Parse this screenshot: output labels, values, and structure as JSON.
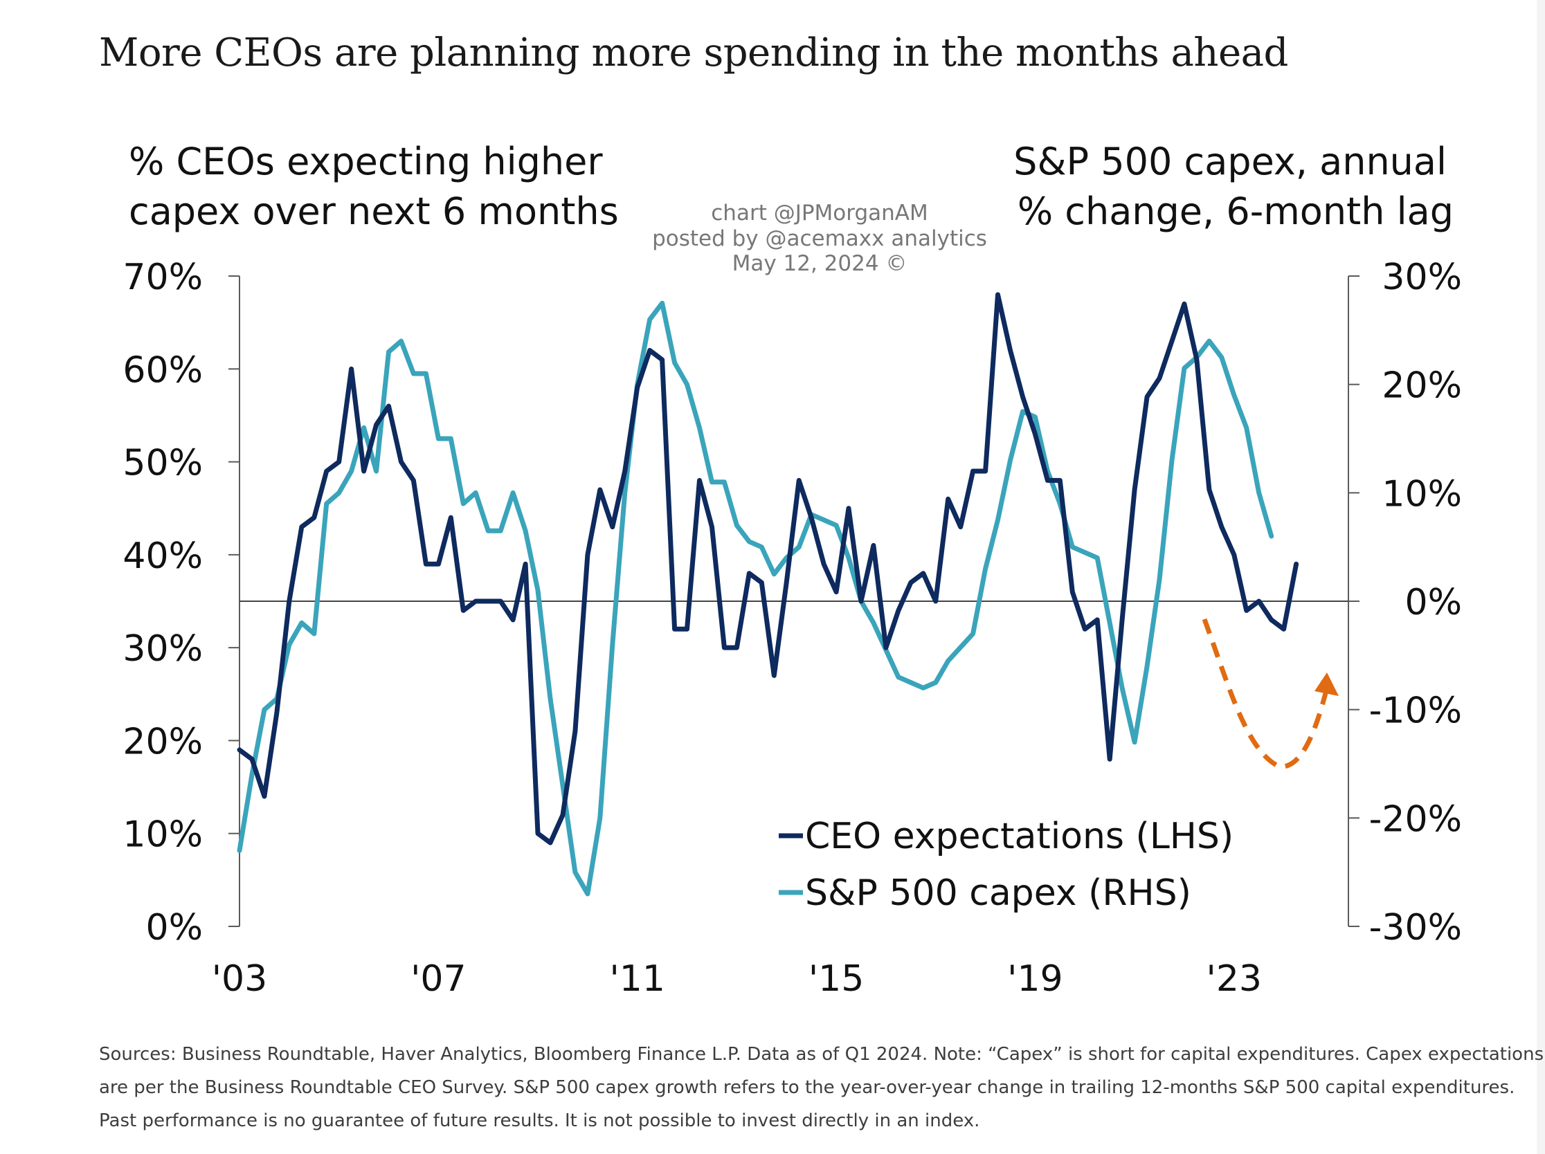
{
  "title": "More CEOs are planning more spending in the months ahead",
  "watermark": [
    "chart @JPMorganAM",
    "posted by @acemaxx analytics",
    "May 12, 2024 ©"
  ],
  "footnote": [
    "Sources: Business Roundtable, Haver Analytics, Bloomberg Finance L.P. Data as of Q1 2024. Note: “Capex” is short for capital expenditures. Capex expectations",
    "are per the Business Roundtable CEO Survey. S&P 500 capex growth refers to the year-over-year change in trailing 12-months S&P 500 capital expenditures.",
    "Past performance is no guarantee of future results. It is not possible to invest directly in an index."
  ],
  "colors": {
    "ceo_line": "#0e2a5e",
    "capex_line": "#3aa4bb",
    "forecast_arrow": "#e06b12",
    "axis": "#5a5a5a",
    "text": "#111111"
  },
  "chart_data": {
    "type": "line",
    "left_axis_title": [
      "% CEOs expecting higher",
      "capex over next 6 months"
    ],
    "right_axis_title": [
      "S&P 500 capex, annual",
      "% change, 6-month lag"
    ],
    "left_ticks": [
      "70%",
      "60%",
      "50%",
      "40%",
      "30%",
      "20%",
      "10%",
      "0%"
    ],
    "right_ticks": [
      "30%",
      "20%",
      "10%",
      "0%",
      "-10%",
      "-20%",
      "-30%"
    ],
    "x_ticks": [
      "'03",
      "'07",
      "'11",
      "'15",
      "'19",
      "'23"
    ],
    "x_tick_years": [
      2003,
      2007,
      2011,
      2015,
      2019,
      2023
    ],
    "xlim": [
      2003,
      2025.3
    ],
    "ylim_left": [
      0,
      70
    ],
    "ylim_right": [
      -30,
      30
    ],
    "zero_line_right": 0,
    "legend": [
      {
        "label": "CEO expectations (LHS)",
        "series": "ceo"
      },
      {
        "label": "S&P 500 capex (RHS)",
        "series": "capex"
      }
    ],
    "series": [
      {
        "id": "ceo",
        "name": "CEO expectations (LHS)",
        "axis": "left",
        "points": [
          [
            2003.0,
            19
          ],
          [
            2003.25,
            18
          ],
          [
            2003.5,
            14
          ],
          [
            2003.75,
            23
          ],
          [
            2004.0,
            35
          ],
          [
            2004.25,
            43
          ],
          [
            2004.5,
            44
          ],
          [
            2004.75,
            49
          ],
          [
            2005.0,
            50
          ],
          [
            2005.25,
            60
          ],
          [
            2005.5,
            49
          ],
          [
            2005.75,
            54
          ],
          [
            2006.0,
            56
          ],
          [
            2006.25,
            50
          ],
          [
            2006.5,
            48
          ],
          [
            2006.75,
            39
          ],
          [
            2007.0,
            39
          ],
          [
            2007.25,
            44
          ],
          [
            2007.5,
            34
          ],
          [
            2007.75,
            35
          ],
          [
            2008.0,
            35
          ],
          [
            2008.25,
            35
          ],
          [
            2008.5,
            33
          ],
          [
            2008.75,
            39
          ],
          [
            2009.0,
            10
          ],
          [
            2009.25,
            9
          ],
          [
            2009.5,
            12
          ],
          [
            2009.75,
            21
          ],
          [
            2010.0,
            40
          ],
          [
            2010.25,
            47
          ],
          [
            2010.5,
            43
          ],
          [
            2010.75,
            49
          ],
          [
            2011.0,
            58
          ],
          [
            2011.25,
            62
          ],
          [
            2011.5,
            61
          ],
          [
            2011.75,
            32
          ],
          [
            2012.0,
            32
          ],
          [
            2012.25,
            48
          ],
          [
            2012.5,
            43
          ],
          [
            2012.75,
            30
          ],
          [
            2013.0,
            30
          ],
          [
            2013.25,
            38
          ],
          [
            2013.5,
            37
          ],
          [
            2013.75,
            27
          ],
          [
            2014.0,
            37
          ],
          [
            2014.25,
            48
          ],
          [
            2014.5,
            44
          ],
          [
            2014.75,
            39
          ],
          [
            2015.0,
            36
          ],
          [
            2015.25,
            45
          ],
          [
            2015.5,
            35
          ],
          [
            2015.75,
            41
          ],
          [
            2016.0,
            30
          ],
          [
            2016.25,
            34
          ],
          [
            2016.5,
            37
          ],
          [
            2016.75,
            38
          ],
          [
            2017.0,
            35
          ],
          [
            2017.25,
            46
          ],
          [
            2017.5,
            43
          ],
          [
            2017.75,
            49
          ],
          [
            2018.0,
            49
          ],
          [
            2018.25,
            68
          ],
          [
            2018.5,
            62
          ],
          [
            2018.75,
            57
          ],
          [
            2019.0,
            53
          ],
          [
            2019.25,
            48
          ],
          [
            2019.5,
            48
          ],
          [
            2019.75,
            36
          ],
          [
            2020.0,
            32
          ],
          [
            2020.25,
            33
          ],
          [
            2020.5,
            18
          ],
          [
            2020.75,
            33
          ],
          [
            2021.0,
            47
          ],
          [
            2021.25,
            57
          ],
          [
            2021.5,
            59
          ],
          [
            2021.75,
            63
          ],
          [
            2022.0,
            67
          ],
          [
            2022.25,
            61
          ],
          [
            2022.5,
            47
          ],
          [
            2022.75,
            43
          ],
          [
            2023.0,
            40
          ],
          [
            2023.25,
            34
          ],
          [
            2023.5,
            35
          ],
          [
            2023.75,
            33
          ],
          [
            2024.0,
            32
          ],
          [
            2024.25,
            39
          ]
        ]
      },
      {
        "id": "capex",
        "name": "S&P 500 capex (RHS)",
        "axis": "right",
        "points": [
          [
            2003.0,
            -23
          ],
          [
            2003.25,
            -16
          ],
          [
            2003.5,
            -10
          ],
          [
            2003.75,
            -9
          ],
          [
            2004.0,
            -4
          ],
          [
            2004.25,
            -2
          ],
          [
            2004.5,
            -3
          ],
          [
            2004.75,
            9
          ],
          [
            2005.0,
            10
          ],
          [
            2005.25,
            12
          ],
          [
            2005.5,
            16
          ],
          [
            2005.75,
            12
          ],
          [
            2006.0,
            23
          ],
          [
            2006.25,
            24
          ],
          [
            2006.5,
            21
          ],
          [
            2006.75,
            21
          ],
          [
            2007.0,
            15
          ],
          [
            2007.25,
            15
          ],
          [
            2007.5,
            9
          ],
          [
            2007.75,
            10
          ],
          [
            2008.0,
            6.5
          ],
          [
            2008.25,
            6.5
          ],
          [
            2008.5,
            10
          ],
          [
            2008.75,
            6.5
          ],
          [
            2009.0,
            1
          ],
          [
            2009.25,
            -9
          ],
          [
            2009.5,
            -17
          ],
          [
            2009.75,
            -25
          ],
          [
            2010.0,
            -27
          ],
          [
            2010.25,
            -20
          ],
          [
            2010.5,
            -4
          ],
          [
            2010.75,
            10
          ],
          [
            2011.0,
            20
          ],
          [
            2011.25,
            26
          ],
          [
            2011.5,
            27.5
          ],
          [
            2011.75,
            22
          ],
          [
            2012.0,
            20
          ],
          [
            2012.25,
            16
          ],
          [
            2012.5,
            11
          ],
          [
            2012.75,
            11
          ],
          [
            2013.0,
            7
          ],
          [
            2013.25,
            5.5
          ],
          [
            2013.5,
            5
          ],
          [
            2013.75,
            2.5
          ],
          [
            2014.0,
            4
          ],
          [
            2014.25,
            5
          ],
          [
            2014.5,
            8
          ],
          [
            2014.75,
            7.5
          ],
          [
            2015.0,
            7
          ],
          [
            2015.25,
            4
          ],
          [
            2015.5,
            0
          ],
          [
            2015.75,
            -2
          ],
          [
            2016.0,
            -4.5
          ],
          [
            2016.25,
            -7
          ],
          [
            2016.5,
            -7.5
          ],
          [
            2016.75,
            -8
          ],
          [
            2017.0,
            -7.5
          ],
          [
            2017.25,
            -5.5
          ],
          [
            2017.75,
            -3
          ],
          [
            2018.0,
            3
          ],
          [
            2018.25,
            7.5
          ],
          [
            2018.5,
            13
          ],
          [
            2018.75,
            17.5
          ],
          [
            2019.0,
            17
          ],
          [
            2019.25,
            12
          ],
          [
            2019.5,
            9
          ],
          [
            2019.75,
            5
          ],
          [
            2020.0,
            4.5
          ],
          [
            2020.25,
            4
          ],
          [
            2020.5,
            -2
          ],
          [
            2020.75,
            -8
          ],
          [
            2021.0,
            -13
          ],
          [
            2021.25,
            -6
          ],
          [
            2021.5,
            2
          ],
          [
            2021.75,
            13
          ],
          [
            2022.0,
            21.5
          ],
          [
            2022.25,
            22.5
          ],
          [
            2022.5,
            24
          ],
          [
            2022.75,
            22.5
          ],
          [
            2023.0,
            19
          ],
          [
            2023.25,
            16
          ],
          [
            2023.5,
            10
          ],
          [
            2023.75,
            6
          ]
        ]
      }
    ]
  }
}
